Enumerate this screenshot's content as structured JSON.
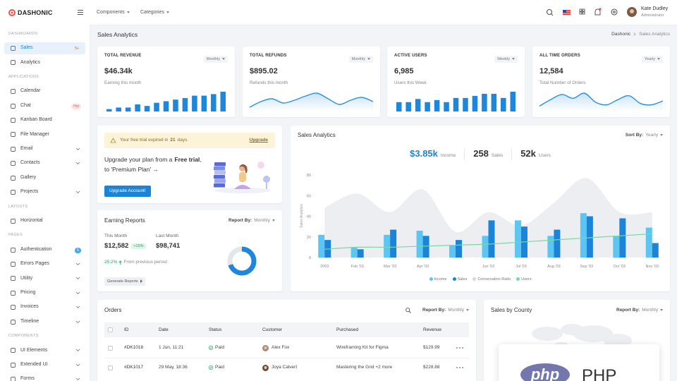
{
  "header": {
    "logo": "DASHONIC",
    "menu": [
      "Components",
      "Categories"
    ],
    "user": {
      "name": "Kate Dudley",
      "role": "Administrator"
    }
  },
  "sidebar": [
    {
      "title": "DASHBOARDS",
      "items": [
        {
          "label": "Sales",
          "badge": "5+",
          "badge_bg": "#eceef2",
          "badge_fg": "#777",
          "active": true
        },
        {
          "label": "Analytics"
        }
      ]
    },
    {
      "title": "APPLICATIONS",
      "items": [
        {
          "label": "Calendar"
        },
        {
          "label": "Chat",
          "badge": "Hot",
          "badge_bg": "#fde4e4",
          "badge_fg": "#e25858"
        },
        {
          "label": "Kanban Board"
        },
        {
          "label": "File Manager"
        },
        {
          "label": "Email",
          "expandable": true
        },
        {
          "label": "Contacts",
          "expandable": true
        },
        {
          "label": "Gallery"
        },
        {
          "label": "Projects",
          "expandable": true
        }
      ]
    },
    {
      "title": "LAYOUTS",
      "items": [
        {
          "label": "Horizontal"
        }
      ]
    },
    {
      "title": "PAGES",
      "items": [
        {
          "label": "Authentication",
          "badge": "5",
          "badge_bg": "#4aa8ea",
          "badge_fg": "#ffffff"
        },
        {
          "label": "Errors Pages",
          "expandable": true
        },
        {
          "label": "Utility",
          "expandable": true
        },
        {
          "label": "Pricing",
          "expandable": true
        },
        {
          "label": "Invoices",
          "expandable": true
        },
        {
          "label": "Timeline",
          "expandable": true
        }
      ]
    },
    {
      "title": "COMPONENTS",
      "items": [
        {
          "label": "UI Elements",
          "expandable": true
        },
        {
          "label": "Extended UI",
          "expandable": true
        },
        {
          "label": "Forms",
          "expandable": true
        }
      ]
    }
  ],
  "page": {
    "title": "Sales Analytics",
    "breadcrumb": [
      "Dashonic",
      "Sales Analytics"
    ]
  },
  "stats": [
    {
      "title": "TOTAL REVENUE",
      "period": "Monthly",
      "value": "$46.34k",
      "note": "Earning this month",
      "chart": "bar",
      "color": "#1f87db",
      "spark": [
        3,
        5,
        5,
        9,
        7,
        11,
        13,
        15,
        17,
        20,
        20,
        22,
        25
      ]
    },
    {
      "title": "TOTAL REFUNDS",
      "period": "Monthly",
      "value": "$895.02",
      "note": "Refunds this month",
      "chart": "area",
      "color": "#2b8fe0",
      "spark": [
        2,
        10,
        14,
        8,
        12,
        18,
        22,
        14,
        6,
        12,
        16,
        10
      ]
    },
    {
      "title": "ACTIVE USERS",
      "period": "Weekly",
      "value": "6,985",
      "note": "Users this Week",
      "chart": "bar",
      "color": "#1f87db",
      "spark": [
        9,
        9,
        12,
        9,
        11,
        9,
        13,
        13,
        15,
        17,
        17,
        13,
        19
      ]
    },
    {
      "title": "ALL TIME ORDERS",
      "period": "Yearly",
      "value": "12,584",
      "note": "Total Number of Orders",
      "chart": "area",
      "color": "#2b8fe0",
      "spark": [
        4,
        14,
        22,
        16,
        24,
        10,
        6,
        14,
        20,
        8,
        6,
        12
      ]
    }
  ],
  "promo": {
    "alert": [
      "Your free trial expired in",
      "21",
      "days."
    ],
    "link": "Upgrade",
    "text": [
      "Upgrade your plan from a",
      "Free trial",
      ", to 'Premium Plan' →"
    ],
    "button": "Upgrade Account!"
  },
  "earning": {
    "title": "Earning Reports",
    "report_by": {
      "label": "Report By:",
      "value": "Monthly"
    },
    "this_month": {
      "label": "This Month",
      "value": "$12,582",
      "change": "+15%"
    },
    "last_month": {
      "label": "Last Month",
      "value": "$98,741"
    },
    "growth": "25.2%",
    "growth_note": "From previous period",
    "button": "Generate Reports",
    "donut": [
      70,
      30
    ],
    "donut_colors": [
      "#1f87db",
      "#e4e6ea"
    ]
  },
  "chart_data": {
    "type": "bar",
    "title": "Sales Analytics",
    "sort_by": {
      "label": "Sort By:",
      "value": "Yearly"
    },
    "summary": [
      {
        "value": "$3.85k",
        "label": "Income"
      },
      {
        "value": "258",
        "label": "Sales"
      },
      {
        "value": "52k",
        "label": "Users"
      }
    ],
    "y_label": "Sales Analytics",
    "categories": [
      "2003",
      "Feb '03",
      "Mar '03",
      "Apr '03",
      null,
      "Jun '03",
      "Jul '03",
      "Aug '03",
      "Sep '03",
      "Oct '03",
      "Nov '03"
    ],
    "series": [
      {
        "name": "Income",
        "color": "#5cc6f2",
        "type": "bar",
        "values": [
          22,
          10,
          22,
          26,
          12,
          21,
          36,
          21,
          43,
          21,
          29
        ]
      },
      {
        "name": "Sales",
        "color": "#1c84d6",
        "type": "bar",
        "values": [
          17,
          8,
          27,
          21,
          17,
          36,
          30,
          27,
          40,
          38,
          14
        ]
      },
      {
        "name": "Conversation Ratio",
        "color": "#eceef2",
        "type": "area",
        "values": [
          48,
          62,
          44,
          66,
          25,
          44,
          31,
          53,
          77,
          44,
          44
        ]
      },
      {
        "name": "Users",
        "color": "#7bd6a6",
        "type": "line",
        "values": [
          8,
          10,
          10,
          11,
          12,
          13,
          15,
          17,
          19,
          21,
          23
        ]
      }
    ],
    "ylim": [
      0,
      80
    ],
    "yticks": [
      0,
      20,
      40,
      60,
      80
    ],
    "legend": "bottom"
  },
  "orders": {
    "title": "Orders",
    "report_by": {
      "label": "Report By:",
      "value": "Monthly"
    },
    "columns": [
      "ID",
      "Date",
      "Status",
      "Customer",
      "Purchased",
      "Revenue"
    ],
    "rows": [
      [
        "#DK1018",
        "1 Jun, 11:21",
        "Paid",
        "Alex Fox",
        "Wireframing Kit for Figma",
        "$129.99"
      ],
      [
        "#DK1017",
        "29 May, 18:36",
        "Paid",
        "Joya Calvert",
        "Mastering the Grid +2 more",
        "$228.88"
      ]
    ]
  },
  "county": {
    "title": "Sales by County",
    "report_by": {
      "label": "Report By:",
      "value": "Monthly"
    },
    "popup": {
      "logo": "php",
      "name": "PHP"
    }
  }
}
